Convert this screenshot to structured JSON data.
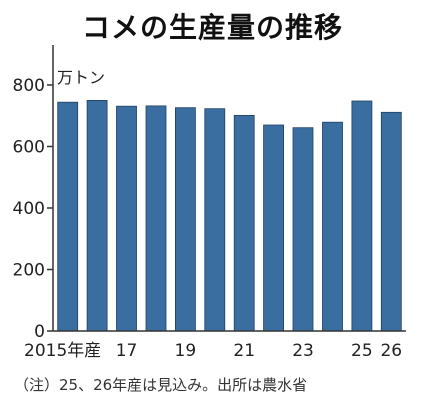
{
  "chart_data": {
    "type": "bar",
    "title": "コメの生産量の推移",
    "unit_label": "万トン",
    "categories": [
      "2015",
      "2016",
      "2017",
      "2018",
      "2019",
      "2020",
      "2021",
      "2022",
      "2023",
      "2024",
      "2025",
      "2026"
    ],
    "values": [
      744,
      750,
      731,
      732,
      726,
      723,
      701,
      670,
      661,
      679,
      748,
      711
    ],
    "x_tick_labels": [
      {
        "index": 0,
        "text": "2015年産"
      },
      {
        "index": 2,
        "text": "17"
      },
      {
        "index": 4,
        "text": "19"
      },
      {
        "index": 6,
        "text": "21"
      },
      {
        "index": 8,
        "text": "23"
      },
      {
        "index": 10,
        "text": "25"
      },
      {
        "index": 11,
        "text": "26"
      }
    ],
    "y_ticks": [
      0,
      200,
      400,
      600,
      800
    ],
    "ylim": [
      0,
      930
    ],
    "bar_color": "#3b6ea0",
    "grid": false,
    "footnote": "（注）25、26年産は見込み。出所は農水省"
  }
}
